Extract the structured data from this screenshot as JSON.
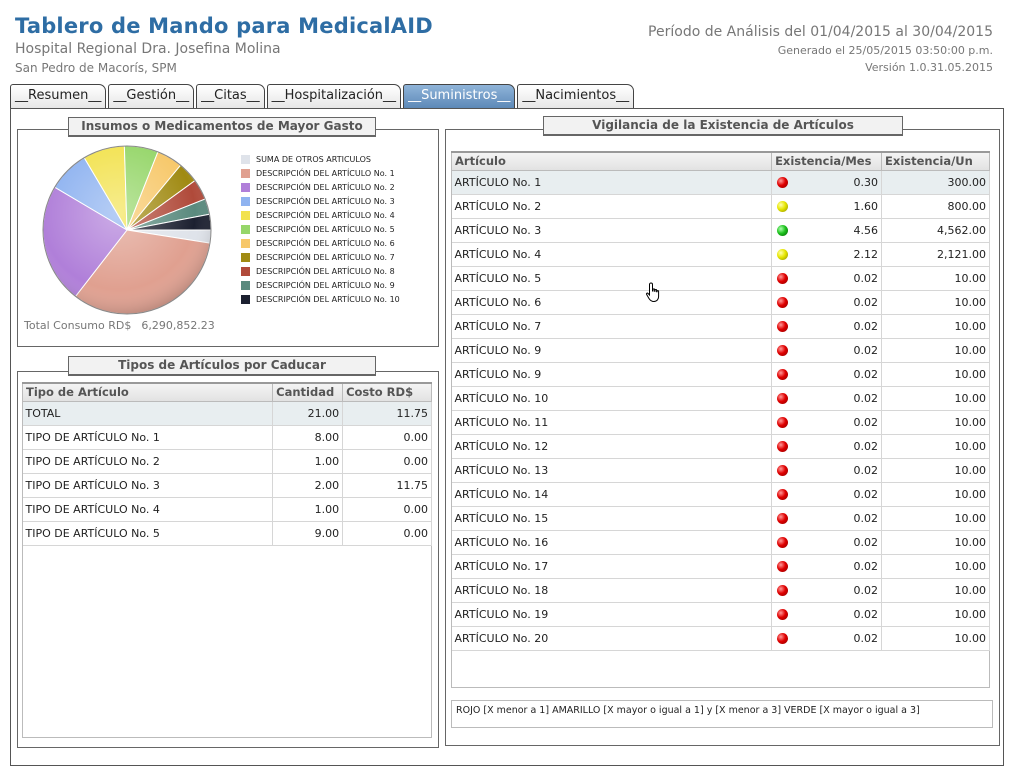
{
  "header": {
    "title": "Tablero de Mando para MedicalAID",
    "hospital": "Hospital Regional Dra. Josefina Molina",
    "location": "San Pedro de Macorís, SPM",
    "period": "Período de Análisis del  01/04/2015 al  30/04/2015",
    "generated": "Generado el 25/05/2015 03:50:00 p.m.",
    "version": "Versión 1.0.31.05.2015"
  },
  "tabs": [
    {
      "label": "__Resumen__",
      "active": false
    },
    {
      "label": "__Gestión__",
      "active": false
    },
    {
      "label": "__Citas__",
      "active": false
    },
    {
      "label": "__Hospitalización__",
      "active": false
    },
    {
      "label": "__Suministros__",
      "active": true
    },
    {
      "label": "__Nacimientos__",
      "active": false
    }
  ],
  "expense_panel": {
    "title": "Insumos o Medicamentos de Mayor Gasto",
    "total_label": "Total Consumo RD$",
    "total_value": "6,290,852.23"
  },
  "chart_data": {
    "type": "pie",
    "title": "Insumos o Medicamentos de Mayor Gasto",
    "categories": [
      "SUMA DE OTROS ARTICULOS",
      "DESCRIPCIÓN DEL ARTÍCULO No. 1",
      "DESCRIPCIÓN DEL ARTÍCULO No. 2",
      "DESCRIPCIÓN DEL ARTÍCULO No. 3",
      "DESCRIPCIÓN DEL ARTÍCULO No. 4",
      "DESCRIPCIÓN DEL ARTÍCULO No. 5",
      "DESCRIPCIÓN DEL ARTÍCULO No. 6",
      "DESCRIPCIÓN DEL ARTÍCULO No. 7",
      "DESCRIPCIÓN DEL ARTÍCULO No. 8",
      "DESCRIPCIÓN DEL ARTÍCULO No. 9",
      "DESCRIPCIÓN DEL ARTÍCULO No. 10"
    ],
    "values": [
      2.5,
      33,
      23,
      8,
      8,
      6.5,
      5,
      4,
      4,
      3,
      3
    ],
    "colors": [
      "#dfe3ea",
      "#e0a090",
      "#b07fd9",
      "#8fb3f0",
      "#f2e250",
      "#96d66a",
      "#f7c86a",
      "#a08a12",
      "#b04a3a",
      "#5a8a7e",
      "#1c2030"
    ],
    "legend_position": "right"
  },
  "expiring_panel": {
    "title": "Tipos de Artículos por Caducar",
    "columns": [
      "Tipo de Artículo",
      "Cantidad",
      "Costo RD$"
    ],
    "rows": [
      [
        "TOTAL",
        "21.00",
        "11.75"
      ],
      [
        "TIPO DE ARTÍCULO No. 1",
        "8.00",
        "0.00"
      ],
      [
        "TIPO DE ARTÍCULO No. 2",
        "1.00",
        "0.00"
      ],
      [
        "TIPO DE ARTÍCULO No. 3",
        "2.00",
        "11.75"
      ],
      [
        "TIPO DE ARTÍCULO No. 4",
        "1.00",
        "0.00"
      ],
      [
        "TIPO DE ARTÍCULO No. 5",
        "9.00",
        "0.00"
      ]
    ]
  },
  "stock_panel": {
    "title": "Vigilancia de la Existencia de Artículos",
    "columns": [
      "Artículo",
      "Existencia/Mes",
      "Existencia/Un"
    ],
    "rows": [
      {
        "name": "ARTÍCULO No. 1",
        "status": "red",
        "months": "0.30",
        "units": "300.00"
      },
      {
        "name": "ARTÍCULO No. 2",
        "status": "yellow",
        "months": "1.60",
        "units": "800.00"
      },
      {
        "name": "ARTÍCULO No. 3",
        "status": "green",
        "months": "4.56",
        "units": "4,562.00"
      },
      {
        "name": "ARTÍCULO No. 4",
        "status": "yellow",
        "months": "2.12",
        "units": "2,121.00"
      },
      {
        "name": "ARTÍCULO No. 5",
        "status": "red",
        "months": "0.02",
        "units": "10.00"
      },
      {
        "name": "ARTÍCULO No. 6",
        "status": "red",
        "months": "0.02",
        "units": "10.00"
      },
      {
        "name": "ARTÍCULO No. 7",
        "status": "red",
        "months": "0.02",
        "units": "10.00"
      },
      {
        "name": "ARTÍCULO No. 9",
        "status": "red",
        "months": "0.02",
        "units": "10.00"
      },
      {
        "name": "ARTÍCULO No. 9",
        "status": "red",
        "months": "0.02",
        "units": "10.00"
      },
      {
        "name": "ARTÍCULO No. 10",
        "status": "red",
        "months": "0.02",
        "units": "10.00"
      },
      {
        "name": "ARTÍCULO No. 11",
        "status": "red",
        "months": "0.02",
        "units": "10.00"
      },
      {
        "name": "ARTÍCULO No. 12",
        "status": "red",
        "months": "0.02",
        "units": "10.00"
      },
      {
        "name": "ARTÍCULO No. 13",
        "status": "red",
        "months": "0.02",
        "units": "10.00"
      },
      {
        "name": "ARTÍCULO No. 14",
        "status": "red",
        "months": "0.02",
        "units": "10.00"
      },
      {
        "name": "ARTÍCULO No. 15",
        "status": "red",
        "months": "0.02",
        "units": "10.00"
      },
      {
        "name": "ARTÍCULO No. 16",
        "status": "red",
        "months": "0.02",
        "units": "10.00"
      },
      {
        "name": "ARTÍCULO No. 17",
        "status": "red",
        "months": "0.02",
        "units": "10.00"
      },
      {
        "name": "ARTÍCULO No. 18",
        "status": "red",
        "months": "0.02",
        "units": "10.00"
      },
      {
        "name": "ARTÍCULO No. 19",
        "status": "red",
        "months": "0.02",
        "units": "10.00"
      },
      {
        "name": "ARTÍCULO No. 20",
        "status": "red",
        "months": "0.02",
        "units": "10.00"
      }
    ],
    "legend_note": "ROJO [X menor a 1]  AMARILLO [X mayor o igual a 1] y [X menor a 3]  VERDE [X mayor o igual a 3]"
  }
}
